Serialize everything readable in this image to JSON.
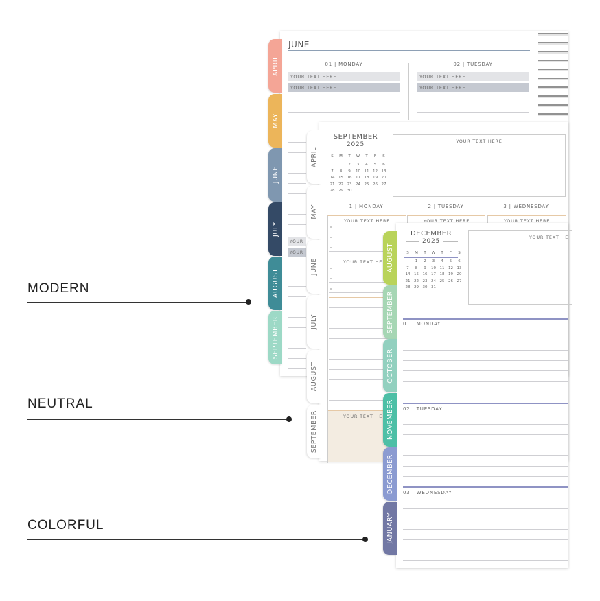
{
  "labels": {
    "modern": "MODERN",
    "neutral": "NEUTRAL",
    "colorful": "COLORFUL"
  },
  "modern": {
    "month_title": "JUNE",
    "days": [
      {
        "label": "01 | MONDAY",
        "boxes": [
          "YOUR TEXT HERE",
          "YOUR TEXT HERE"
        ]
      },
      {
        "label": "02 | TUESDAY",
        "boxes": [
          "YOUR TEXT HERE",
          "YOUR TEXT HERE"
        ]
      }
    ],
    "side_boxes": [
      "YOUR",
      "YOUR"
    ],
    "tabs": [
      {
        "label": "APRIL",
        "color": "#f4a596"
      },
      {
        "label": "MAY",
        "color": "#ecb55a"
      },
      {
        "label": "JUNE",
        "color": "#7f97b0"
      },
      {
        "label": "JULY",
        "color": "#344a66"
      },
      {
        "label": "AUGUST",
        "color": "#3f8c97"
      },
      {
        "label": "SEPTEMBER",
        "color": "#9dd9c6"
      }
    ]
  },
  "neutral": {
    "calendar": {
      "month": "SEPTEMBER",
      "year": "2025",
      "weekdays": [
        "S",
        "M",
        "T",
        "W",
        "T",
        "F",
        "S"
      ],
      "first_weekday": 1,
      "days_in_month": 30,
      "accent": "#e6c9a6"
    },
    "notes_box": "YOUR TEXT HERE",
    "days": [
      {
        "label": "1 | MONDAY",
        "header": "YOUR TEXT HERE"
      },
      {
        "label": "2 | TUESDAY",
        "header": "YOUR TEXT HERE"
      },
      {
        "label": "3 | WEDNESDAY",
        "header": "YOUR TEXT HERE"
      }
    ],
    "section_headers": [
      "YOUR TEXT HE",
      "YOUR TEXT HE"
    ],
    "tabs": [
      {
        "label": "APRIL"
      },
      {
        "label": "MAY"
      },
      {
        "label": "JUNE"
      },
      {
        "label": "JULY"
      },
      {
        "label": "AUGUST"
      },
      {
        "label": "SEPTEMBER"
      }
    ]
  },
  "colorful": {
    "calendar": {
      "month": "DECEMBER",
      "year": "2025",
      "weekdays": [
        "S",
        "M",
        "T",
        "W",
        "T",
        "F",
        "S"
      ],
      "first_weekday": 1,
      "days_in_month": 31,
      "accent": "#8f93c4"
    },
    "notes_box": "YOUR TEXT HE",
    "days": [
      "01 | MONDAY",
      "02 | TUESDAY",
      "03 | WEDNESDAY"
    ],
    "tabs": [
      {
        "label": "AUGUST",
        "color": "#b9d35a"
      },
      {
        "label": "SEPTEMBER",
        "color": "#a6d6b4"
      },
      {
        "label": "OCTOBER",
        "color": "#92d0bf"
      },
      {
        "label": "NOVEMBER",
        "color": "#4dbfa6"
      },
      {
        "label": "DECEMBER",
        "color": "#8b9bd1"
      },
      {
        "label": "JANUARY",
        "color": "#7278a4"
      }
    ]
  }
}
